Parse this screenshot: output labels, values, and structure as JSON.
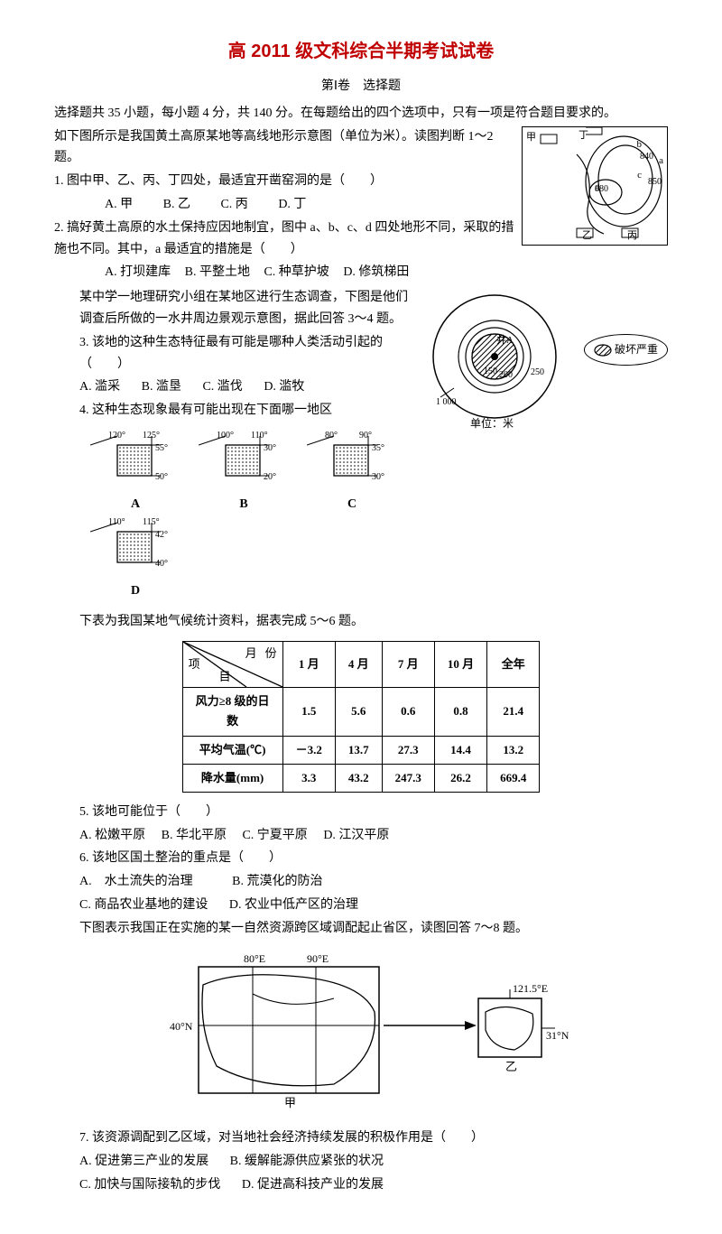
{
  "title": "高 2011 级文科综合半期考试试卷",
  "section": {
    "label": "第Ⅰ卷　选择题"
  },
  "instructions": "选择题共 35 小题，每小题 4 分，共 140 分。在每题给出的四个选项中，只有一项是符合题目要求的。",
  "passage_q1_2": "如下图所示是我国黄土高原某地等高线地形示意图（单位为米）。读图判断 1～2 题。",
  "q1": {
    "text": "1. 图中甲、乙、丙、丁四处，最适宜开凿窑洞的是（　　）",
    "options": {
      "A": "A. 甲",
      "B": "B. 乙",
      "C": "C. 丙",
      "D": "D. 丁"
    }
  },
  "q2": {
    "text": "2. 搞好黄土高原的水土保持应因地制宜，图中 a、b、c、d 四处地形不同，采取的措施也不同。其中，a 最适宜的措施是（　　）",
    "options": {
      "A": "A. 打坝建库",
      "B": "B. 平整土地",
      "C": "C. 种草护坡",
      "D": "D. 修筑梯田"
    }
  },
  "passage_q3_4": "某中学一地理研究小组在某地区进行生态调查，下图是他们调查后所做的一水井周边景观示意图，据此回答 3～4 题。",
  "q3": {
    "text": "3. 该地的这种生态特征最有可能是哪种人类活动引起的（　　）",
    "options": {
      "A": "A. 滥采",
      "B": "B. 滥垦",
      "C": "C. 滥伐",
      "D": "D. 滥牧"
    }
  },
  "q4": {
    "text": "4. 这种生态现象最有可能出现在下面哪一地区"
  },
  "regions": {
    "shading_color": "#888888",
    "items": [
      {
        "label": "A",
        "lon": [
          "120°",
          "125°"
        ],
        "lat": [
          "55°",
          "50°"
        ]
      },
      {
        "label": "B",
        "lon": [
          "100°",
          "110°"
        ],
        "lat": [
          "30°",
          "20°"
        ]
      },
      {
        "label": "C",
        "lon": [
          "80°",
          "90°"
        ],
        "lat": [
          "35°",
          "30°"
        ]
      },
      {
        "label": "D",
        "lon": [
          "110°",
          "115°"
        ],
        "lat": [
          "42°",
          "40°"
        ]
      }
    ]
  },
  "well_figure": {
    "center_label": "井A",
    "radii": [
      "150",
      "200",
      "250"
    ],
    "outer_tick": "1 000",
    "unit": "单位：米",
    "legend": "破坏严重"
  },
  "contour_figure": {
    "labels": [
      "甲",
      "乙",
      "丙",
      "丁",
      "a",
      "b",
      "c",
      "d"
    ],
    "contours": [
      "840",
      "850",
      "880"
    ]
  },
  "passage_q5_6": "下表为我国某地气候统计资料，据表完成 5～6 题。",
  "climate_table": {
    "header_diag": {
      "top1": "月",
      "top2": "份",
      "bot1": "项",
      "bot2": "目"
    },
    "columns": [
      "1 月",
      "4 月",
      "7 月",
      "10 月",
      "全年"
    ],
    "rows": [
      {
        "label": "风力≥8 级的日数",
        "values": [
          "1.5",
          "5.6",
          "0.6",
          "0.8",
          "21.4"
        ]
      },
      {
        "label": "平均气温(℃)",
        "values": [
          "－3.2",
          "13.7",
          "27.3",
          "14.4",
          "13.2"
        ]
      },
      {
        "label": "降水量(mm)",
        "values": [
          "3.3",
          "43.2",
          "247.3",
          "26.2",
          "669.4"
        ]
      }
    ]
  },
  "q5": {
    "text": "5. 该地可能位于（　　）",
    "options": {
      "A": "A. 松嫩平原",
      "B": "B. 华北平原",
      "C": "C. 宁夏平原",
      "D": "D. 江汉平原"
    }
  },
  "q6": {
    "text": "6. 该地区国土整治的重点是（　　）",
    "options": {
      "A": "A.　水土流失的治理",
      "B": "B. 荒漠化的防治",
      "C": "C. 商品农业基地的建设",
      "D": "D. 农业中低产区的治理"
    }
  },
  "passage_q7_8": "下图表示我国正在实施的某一自然资源跨区域调配起止省区，读图回答 7～8 题。",
  "transfer_figure": {
    "lon_left": "80°E",
    "lon_right": "90°E",
    "lat_left": "40°N",
    "lon_dest": "121.5°E",
    "lat_dest": "31°N",
    "labels": {
      "left": "甲",
      "right": "乙"
    }
  },
  "q7": {
    "text": "7. 该资源调配到乙区域，对当地社会经济持续发展的积极作用是（　　）",
    "options": {
      "A": "A. 促进第三产业的发展",
      "B": "B. 缓解能源供应紧张的状况",
      "C": "C. 加快与国际接轨的步伐",
      "D": "D. 促进高科技产业的发展"
    }
  },
  "colors": {
    "title": "#c00000",
    "text": "#000000",
    "background": "#ffffff",
    "shade": "#888888"
  }
}
